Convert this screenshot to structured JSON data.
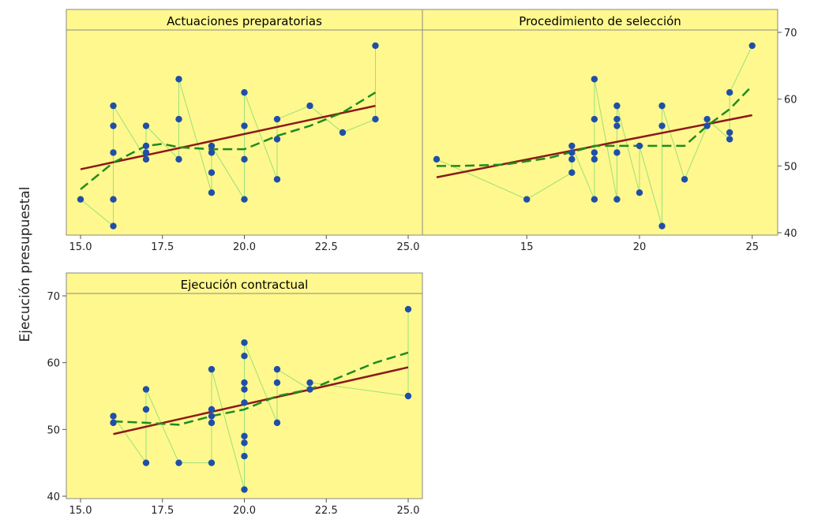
{
  "ylabel": "Ejecución presupuestal",
  "colors": {
    "panel_bg": "#FFF88E",
    "header_bg": "#FFF88E",
    "points": "#1F4FA8",
    "connector": "#9BE07A",
    "linear_fit": "#8B1A1A",
    "smooth_fit": "#1E8C1E",
    "frame": "#888888"
  },
  "chart_data": [
    {
      "type": "scatter",
      "title": "Actuaciones preparatorias",
      "xlim": [
        15,
        25
      ],
      "ylim": [
        40,
        70
      ],
      "x_ticks": [
        "15.0",
        "17.5",
        "20.0",
        "22.5",
        "25.0"
      ],
      "x_tick_values": [
        15,
        17.5,
        20,
        22.5,
        25
      ],
      "y_ticks": [],
      "points": [
        [
          15,
          45
        ],
        [
          16,
          41
        ],
        [
          16,
          45
        ],
        [
          16,
          52
        ],
        [
          16,
          56
        ],
        [
          16,
          59
        ],
        [
          17,
          51
        ],
        [
          17,
          52
        ],
        [
          17,
          53
        ],
        [
          17,
          56
        ],
        [
          18,
          51
        ],
        [
          18,
          57
        ],
        [
          18,
          63
        ],
        [
          19,
          46
        ],
        [
          19,
          49
        ],
        [
          19,
          52
        ],
        [
          19,
          53
        ],
        [
          20,
          45
        ],
        [
          20,
          51
        ],
        [
          20,
          56
        ],
        [
          20,
          61
        ],
        [
          21,
          48
        ],
        [
          21,
          54
        ],
        [
          21,
          57
        ],
        [
          22,
          59
        ],
        [
          23,
          55
        ],
        [
          24,
          57
        ],
        [
          24,
          68
        ]
      ],
      "linear_fit": [
        [
          15,
          49.5
        ],
        [
          24,
          59
        ]
      ],
      "smooth_fit": [
        [
          15,
          46.5
        ],
        [
          16,
          50.5
        ],
        [
          17,
          53
        ],
        [
          17.5,
          53.3
        ],
        [
          18,
          52.8
        ],
        [
          19,
          52.5
        ],
        [
          20,
          52.5
        ],
        [
          21,
          54.5
        ],
        [
          22,
          56
        ],
        [
          23,
          58
        ],
        [
          24,
          61
        ]
      ],
      "grid": false,
      "legend": false
    },
    {
      "type": "scatter",
      "title": "Procedimiento de selección",
      "xlim": [
        11,
        25.5
      ],
      "ylim": [
        40,
        70
      ],
      "x_ticks": [
        "15",
        "20",
        "25"
      ],
      "x_tick_values": [
        15,
        20,
        25
      ],
      "y_ticks": [
        "40",
        "50",
        "60",
        "70"
      ],
      "y_tick_values": [
        40,
        50,
        60,
        70
      ],
      "points": [
        [
          11,
          51
        ],
        [
          15,
          45
        ],
        [
          17,
          49
        ],
        [
          17,
          51
        ],
        [
          17,
          52
        ],
        [
          17,
          53
        ],
        [
          18,
          45
        ],
        [
          18,
          51
        ],
        [
          18,
          52
        ],
        [
          18,
          57
        ],
        [
          18,
          63
        ],
        [
          19,
          45
        ],
        [
          19,
          52
        ],
        [
          19,
          56
        ],
        [
          19,
          57
        ],
        [
          19,
          59
        ],
        [
          20,
          46
        ],
        [
          20,
          53
        ],
        [
          21,
          41
        ],
        [
          21,
          56
        ],
        [
          21,
          59
        ],
        [
          22,
          48
        ],
        [
          23,
          56
        ],
        [
          23,
          57
        ],
        [
          24,
          54
        ],
        [
          24,
          55
        ],
        [
          24,
          61
        ],
        [
          25,
          68
        ]
      ],
      "linear_fit": [
        [
          11,
          48.3
        ],
        [
          25,
          57.6
        ]
      ],
      "smooth_fit": [
        [
          11,
          50
        ],
        [
          12,
          50
        ],
        [
          14,
          50.2
        ],
        [
          16,
          51.2
        ],
        [
          18,
          53
        ],
        [
          20,
          53
        ],
        [
          22,
          53
        ],
        [
          23,
          56
        ],
        [
          24,
          58.5
        ],
        [
          25,
          62
        ]
      ],
      "grid": false,
      "legend": false
    },
    {
      "type": "scatter",
      "title": "Ejecución contractual",
      "xlim": [
        15,
        25
      ],
      "ylim": [
        40,
        70
      ],
      "x_ticks": [
        "15.0",
        "17.5",
        "20.0",
        "22.5",
        "25.0"
      ],
      "x_tick_values": [
        15,
        17.5,
        20,
        22.5,
        25
      ],
      "y_ticks": [
        "40",
        "50",
        "60",
        "70"
      ],
      "y_tick_values": [
        40,
        50,
        60,
        70
      ],
      "points": [
        [
          16,
          51
        ],
        [
          16,
          52
        ],
        [
          17,
          45
        ],
        [
          17,
          53
        ],
        [
          17,
          56
        ],
        [
          18,
          45
        ],
        [
          19,
          45
        ],
        [
          19,
          51
        ],
        [
          19,
          52
        ],
        [
          19,
          53
        ],
        [
          19,
          59
        ],
        [
          20,
          41
        ],
        [
          20,
          46
        ],
        [
          20,
          48
        ],
        [
          20,
          49
        ],
        [
          20,
          54
        ],
        [
          20,
          56
        ],
        [
          20,
          57
        ],
        [
          20,
          61
        ],
        [
          20,
          63
        ],
        [
          21,
          51
        ],
        [
          21,
          57
        ],
        [
          21,
          59
        ],
        [
          22,
          56
        ],
        [
          22,
          57
        ],
        [
          25,
          55
        ],
        [
          25,
          68
        ]
      ],
      "linear_fit": [
        [
          16,
          49.3
        ],
        [
          25,
          59.3
        ]
      ],
      "smooth_fit": [
        [
          16,
          51.2
        ],
        [
          17,
          51
        ],
        [
          18,
          50.7
        ],
        [
          19,
          52
        ],
        [
          20,
          53
        ],
        [
          21,
          55
        ],
        [
          22,
          56
        ],
        [
          23,
          58
        ],
        [
          24,
          60
        ],
        [
          25,
          61.5
        ]
      ],
      "grid": false,
      "legend": false
    }
  ]
}
